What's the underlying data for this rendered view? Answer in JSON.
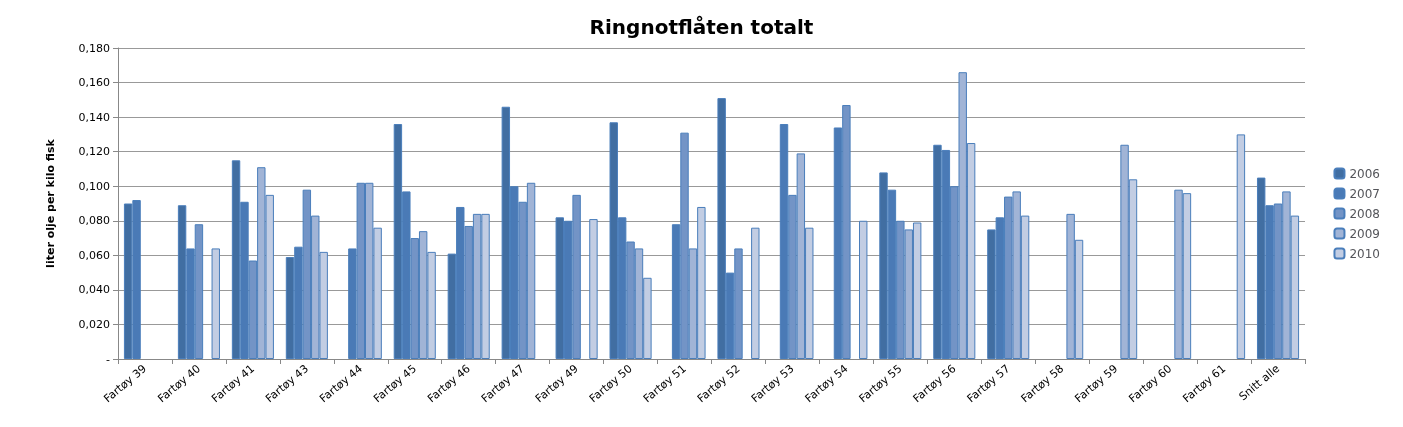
{
  "chart_data": {
    "type": "bar",
    "title": "Ringnotflåten totalt",
    "ylabel": "liter olje per kilo fisk",
    "categories": [
      "Fartøy 39",
      "Fartøy 40",
      "Fartøy 41",
      "Fartøy 43",
      "Fartøy 44",
      "Fartøy 45",
      "Fartøy 46",
      "Fartøy 47",
      "Fartøy 49",
      "Fartøy 50",
      "Fartøy 51",
      "Fartøy 52",
      "Fartøy 53",
      "Fartøy 54",
      "Fartøy 55",
      "Fartøy 56",
      "Fartøy 57",
      "Fartøy 58",
      "Fartøy 59",
      "Fartøy 60",
      "Fartøy 61",
      "Snitt alle"
    ],
    "series": [
      {
        "name": "2006",
        "color": "#416ea2",
        "values": [
          0.09,
          0.089,
          0.115,
          0.059,
          null,
          0.136,
          0.061,
          0.146,
          0.082,
          0.137,
          null,
          0.151,
          null,
          null,
          0.108,
          0.124,
          0.075,
          null,
          null,
          null,
          null,
          0.105
        ]
      },
      {
        "name": "2007",
        "color": "#4a7ab6",
        "values": [
          0.092,
          0.064,
          0.091,
          0.065,
          0.064,
          0.097,
          0.088,
          0.1,
          0.08,
          0.082,
          0.078,
          0.05,
          0.136,
          0.134,
          0.098,
          0.121,
          0.082,
          null,
          null,
          null,
          null,
          0.089
        ]
      },
      {
        "name": "2008",
        "color": "#7394c6",
        "values": [
          null,
          0.078,
          0.057,
          0.098,
          0.102,
          0.07,
          0.077,
          0.091,
          0.095,
          0.068,
          0.131,
          0.064,
          0.095,
          0.147,
          0.08,
          0.1,
          0.094,
          null,
          null,
          null,
          null,
          0.09
        ]
      },
      {
        "name": "2009",
        "color": "#a1b4d6",
        "values": [
          null,
          null,
          0.111,
          0.083,
          0.102,
          0.074,
          0.084,
          0.102,
          null,
          0.064,
          0.064,
          null,
          0.119,
          null,
          0.075,
          0.166,
          0.097,
          0.084,
          0.124,
          0.098,
          null,
          0.097
        ]
      },
      {
        "name": "2010",
        "color": "#c2cde3",
        "values": [
          null,
          0.064,
          0.095,
          0.062,
          0.076,
          0.062,
          0.084,
          null,
          0.081,
          0.047,
          0.088,
          0.076,
          0.076,
          0.08,
          0.079,
          0.125,
          0.083,
          0.069,
          0.104,
          0.096,
          0.13,
          0.083
        ]
      }
    ],
    "ylim": [
      0,
      0.18
    ],
    "yticks": [
      {
        "value": 0,
        "label": "-"
      },
      {
        "value": 0.02,
        "label": "0,020"
      },
      {
        "value": 0.04,
        "label": "0,040"
      },
      {
        "value": 0.06,
        "label": "0,060"
      },
      {
        "value": 0.08,
        "label": "0,080"
      },
      {
        "value": 0.1,
        "label": "0,100"
      },
      {
        "value": 0.12,
        "label": "0,120"
      },
      {
        "value": 0.14,
        "label": "0,140"
      },
      {
        "value": 0.16,
        "label": "0,160"
      },
      {
        "value": 0.18,
        "label": "0,180"
      }
    ],
    "grid": "y",
    "legend": "right"
  }
}
